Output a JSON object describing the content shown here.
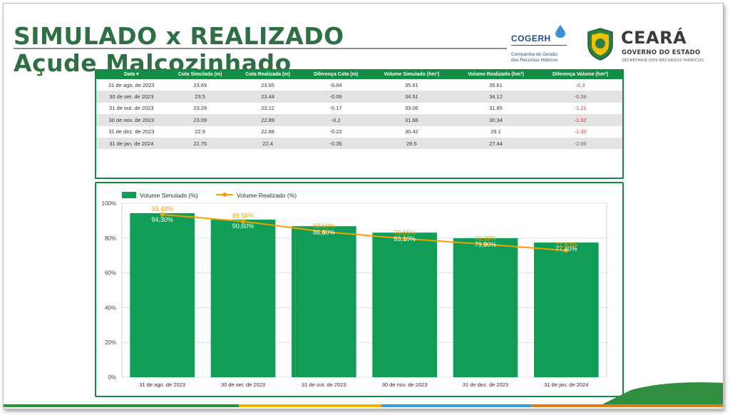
{
  "header": {
    "title_line1": "SIMULADO x REALIZADO",
    "title_line2": "Açude Malcozinhado"
  },
  "logos": {
    "cogerh_name": "COGERH",
    "cogerh_sub1": "Companhia de Gestão",
    "cogerh_sub2": "dos Recursos Hídricos",
    "ceara_name": "CEARÁ",
    "ceara_gov": "GOVERNO DO ESTADO",
    "ceara_sec": "SECRETARIA DOS RECURSOS HÍDRICOS"
  },
  "table": {
    "headers": [
      "Data ▾",
      "Cota Simulada (m)",
      "Cota Realizada (m)",
      "Diferença Cota (m)",
      "Volume Simulado (hm³)",
      "Volume Realizado (hm³)",
      "Diferença Volume (hm³)"
    ],
    "rows": [
      [
        "31 de ago. de 2023",
        "23.69",
        "23.65",
        "-0.04",
        "35.91",
        "35.61",
        "-0.3"
      ],
      [
        "30 de set. de 2023",
        "23.5",
        "23.44",
        "-0.06",
        "34.51",
        "34.12",
        "-0.39"
      ],
      [
        "31 de out. de 2023",
        "23.29",
        "23.12",
        "-0.17",
        "33.06",
        "31.85",
        "-1.21"
      ],
      [
        "30 de nov. de 2023",
        "23.09",
        "22.89",
        "-0.2",
        "31.66",
        "30.34",
        "-1.32"
      ],
      [
        "31 de dez. de 2023",
        "22.9",
        "22.68",
        "-0.22",
        "30.42",
        "29.1",
        "-1.32"
      ],
      [
        "31 de jan. de 2024",
        "22.75",
        "22.4",
        "-0.35",
        "29.5",
        "27.44",
        "-2.06"
      ]
    ]
  },
  "chart_data": {
    "type": "bar",
    "categories": [
      "31 de ago. de 2023",
      "30 de set. de 2023",
      "31 de out. de 2023",
      "30 de nov. de 2023",
      "31 de dez. de 2023",
      "31 de jan. de 2024"
    ],
    "series": [
      {
        "name": "Volume Simulado (%)",
        "type": "bar",
        "color": "#0f9d58",
        "values": [
          94.3,
          90.6,
          86.8,
          83.1,
          79.9,
          77.4
        ],
        "labels": [
          "94,30%",
          "90,60%",
          "86,80%",
          "83,10%",
          "79,90%",
          "77,40%"
        ]
      },
      {
        "name": "Volume Realizado (%)",
        "type": "line",
        "color": "#f4a100",
        "values": [
          93.48,
          89.56,
          83.6,
          79.65,
          76.39,
          72.83
        ],
        "labels": [
          "93,48%",
          "89,56%",
          "83,60%",
          "79,65%",
          "76,39%",
          "72,83%"
        ]
      }
    ],
    "ylim": [
      0,
      100
    ],
    "yticks": [
      0,
      20,
      40,
      60,
      80,
      100
    ],
    "ytick_labels": [
      "0%",
      "20%",
      "40%",
      "60%",
      "80%",
      "100%"
    ],
    "grid": true,
    "legend": "top-left"
  }
}
